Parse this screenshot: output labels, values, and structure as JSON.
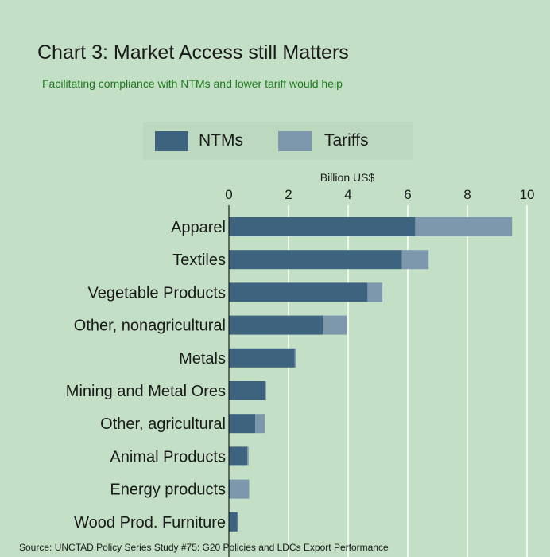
{
  "colors": {
    "background": "#c3dfc5",
    "ntms": "#3e637e",
    "tariffs": "#7d97ad",
    "gridline": "#ffffff",
    "subtitle": "#1f7a1f"
  },
  "chart_data": {
    "type": "bar",
    "orientation": "horizontal",
    "stacked": true,
    "title": "Chart 3: Market Access still Matters",
    "subtitle": "Facilitating compliance with NTMs and lower tariff would help",
    "xlabel": "Billion US$",
    "xlim": [
      0,
      10
    ],
    "x_ticks": [
      0,
      2,
      4,
      6,
      8,
      10
    ],
    "x_axis_position": "top",
    "grid": true,
    "legend_position": "top",
    "categories": [
      "Apparel",
      "Textiles",
      "Vegetable Products",
      "Other, nonagricultural",
      "Metals",
      "Mining and Metal Ores",
      "Other, agricultural",
      "Animal Products",
      "Energy products",
      "Wood Prod. Furniture"
    ],
    "series": [
      {
        "name": "NTMs",
        "values": [
          6.25,
          5.8,
          4.65,
          3.15,
          2.2,
          1.2,
          0.88,
          0.62,
          0.06,
          0.28
        ]
      },
      {
        "name": "Tariffs",
        "values": [
          3.25,
          0.9,
          0.5,
          0.8,
          0.05,
          0.05,
          0.32,
          0.04,
          0.62,
          0.02
        ]
      }
    ],
    "source": "Source: UNCTAD Policy Series Study #75: G20 Policies and LDCs Export Performance"
  }
}
